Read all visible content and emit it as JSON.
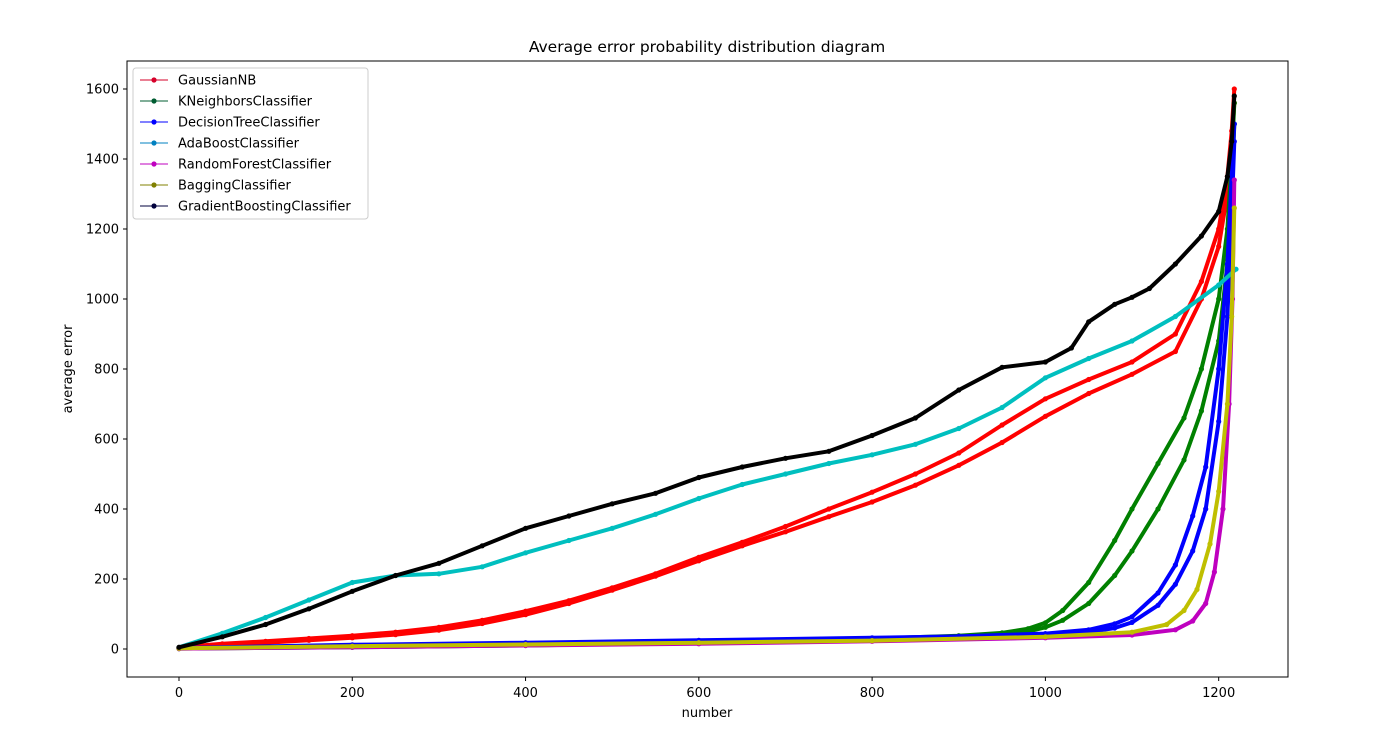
{
  "chart_data": {
    "type": "line",
    "title": "Average error probability distribution diagram",
    "xlabel": "number",
    "ylabel": "average error",
    "xlim": [
      -60,
      1280
    ],
    "ylim": [
      -80,
      1680
    ],
    "xticks": [
      0,
      200,
      400,
      600,
      800,
      1000,
      1200
    ],
    "yticks": [
      0,
      200,
      400,
      600,
      800,
      1000,
      1200,
      1400,
      1600
    ],
    "grid": false,
    "legend_position": "top-left",
    "series": [
      {
        "name": "GaussianNB",
        "color": "#ff0000",
        "legend_color": "#d6002a",
        "x": [
          0,
          50,
          100,
          150,
          200,
          250,
          300,
          350,
          400,
          450,
          500,
          550,
          600,
          650,
          700,
          750,
          800,
          850,
          900,
          950,
          1000,
          1050,
          1100,
          1150,
          1180,
          1200,
          1210,
          1215,
          1218
        ],
        "y": [
          5,
          15,
          22,
          30,
          38,
          48,
          62,
          82,
          108,
          138,
          175,
          215,
          262,
          305,
          350,
          400,
          448,
          500,
          560,
          640,
          715,
          770,
          820,
          900,
          1050,
          1200,
          1350,
          1480,
          1600
        ],
        "y_lower": [
          3,
          12,
          18,
          25,
          32,
          41,
          54,
          73,
          98,
          130,
          168,
          208,
          252,
          295,
          335,
          378,
          420,
          468,
          525,
          590,
          665,
          730,
          785,
          850,
          1000,
          1150,
          1300,
          1440,
          1560
        ]
      },
      {
        "name": "KNeighborsClassifier",
        "color": "#008000",
        "legend_color": "#005c31",
        "x": [
          0,
          200,
          400,
          600,
          800,
          900,
          950,
          980,
          1000,
          1020,
          1050,
          1080,
          1100,
          1130,
          1160,
          1180,
          1200,
          1210,
          1215,
          1218
        ],
        "y": [
          2,
          6,
          12,
          20,
          30,
          38,
          46,
          58,
          75,
          110,
          190,
          310,
          400,
          530,
          660,
          800,
          1000,
          1200,
          1400,
          1560
        ],
        "y_lower": [
          1,
          5,
          10,
          18,
          28,
          35,
          42,
          50,
          62,
          82,
          130,
          210,
          280,
          400,
          540,
          680,
          880,
          1100,
          1300,
          1500
        ]
      },
      {
        "name": "DecisionTreeClassifier",
        "color": "#0000ff",
        "legend_color": "#0000ff",
        "x": [
          0,
          200,
          400,
          600,
          800,
          900,
          1000,
          1050,
          1080,
          1100,
          1130,
          1150,
          1170,
          1185,
          1200,
          1210,
          1215,
          1218
        ],
        "y": [
          3,
          12,
          18,
          25,
          32,
          36,
          44,
          55,
          72,
          92,
          160,
          240,
          380,
          520,
          800,
          1100,
          1350,
          1500
        ],
        "y_lower": [
          2,
          10,
          16,
          22,
          30,
          34,
          40,
          48,
          60,
          76,
          125,
          185,
          280,
          400,
          650,
          950,
          1250,
          1450
        ]
      },
      {
        "name": "AdaBoostClassifier",
        "color": "#00bfbf",
        "legend_color": "#0080c0",
        "x": [
          0,
          50,
          100,
          150,
          200,
          250,
          300,
          350,
          400,
          450,
          500,
          550,
          600,
          650,
          700,
          750,
          800,
          850,
          900,
          950,
          1000,
          1050,
          1100,
          1150,
          1200,
          1220
        ],
        "y": [
          5,
          45,
          90,
          140,
          190,
          210,
          215,
          235,
          275,
          310,
          345,
          385,
          430,
          470,
          500,
          530,
          555,
          585,
          630,
          690,
          775,
          830,
          880,
          950,
          1040,
          1085
        ]
      },
      {
        "name": "RandomForestClassifier",
        "color": "#bf00bf",
        "legend_color": "#bf00bf",
        "x": [
          0,
          200,
          400,
          600,
          800,
          1000,
          1100,
          1150,
          1170,
          1185,
          1195,
          1205,
          1212,
          1216,
          1218
        ],
        "y": [
          1,
          5,
          10,
          15,
          22,
          32,
          40,
          55,
          80,
          130,
          220,
          400,
          700,
          1000,
          1340
        ]
      },
      {
        "name": "BaggingClassifier",
        "color": "#bfbf00",
        "legend_color": "#808000",
        "x": [
          0,
          200,
          400,
          600,
          800,
          1000,
          1100,
          1140,
          1160,
          1175,
          1190,
          1200,
          1210,
          1215,
          1218
        ],
        "y": [
          2,
          8,
          13,
          18,
          24,
          35,
          48,
          70,
          110,
          170,
          300,
          450,
          700,
          950,
          1260
        ]
      },
      {
        "name": "GradientBoostingClassifier",
        "color": "#000000",
        "legend_color": "#00003c",
        "x": [
          0,
          50,
          100,
          150,
          200,
          250,
          300,
          350,
          400,
          450,
          500,
          550,
          600,
          650,
          700,
          750,
          800,
          850,
          900,
          950,
          1000,
          1030,
          1050,
          1080,
          1100,
          1120,
          1150,
          1180,
          1200,
          1210,
          1215,
          1218
        ],
        "y": [
          5,
          35,
          70,
          115,
          165,
          210,
          245,
          295,
          345,
          380,
          415,
          445,
          490,
          520,
          545,
          565,
          610,
          660,
          740,
          805,
          820,
          860,
          935,
          985,
          1005,
          1030,
          1100,
          1180,
          1250,
          1350,
          1450,
          1580
        ]
      }
    ]
  }
}
